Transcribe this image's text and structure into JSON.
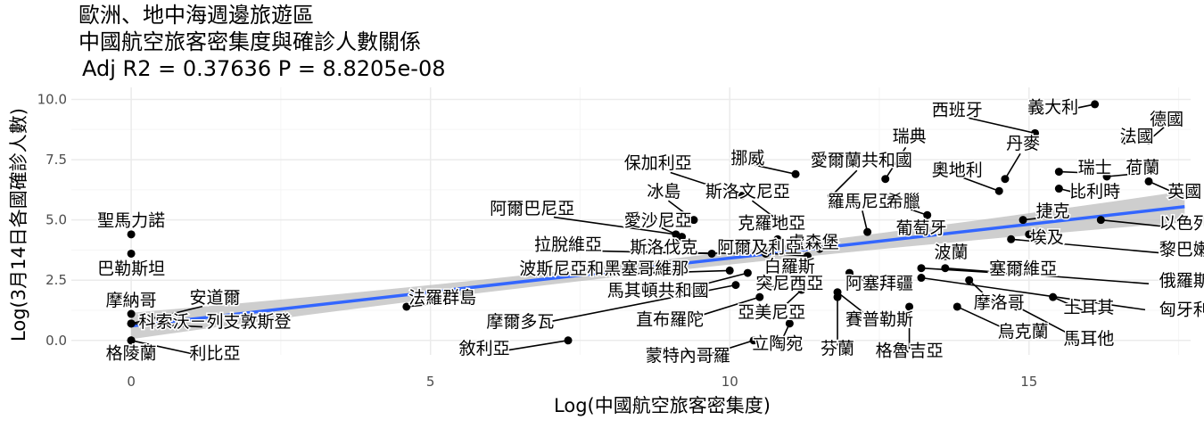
{
  "title": "歐洲、地中海週邊旅遊區",
  "subtitle": "中國航空旅客密集度與確診人數關係",
  "stats_line": "Adj R2 =  0.37636  P = 8.8205e-08",
  "colors": {
    "background": "#ffffff",
    "grid_major": "#ebebeb",
    "grid_minor": "#f5f5f5",
    "point": "#000000",
    "regression_line": "#3366ff",
    "confidence_band": "#bdbdbd",
    "tick_text": "#4d4d4d"
  },
  "chart_data": {
    "type": "scatter",
    "title": "歐洲、地中海週邊旅遊區",
    "subtitle": "中國航空旅客密集度與確診人數關係",
    "annotation": "Adj R2 =  0.37636  P = 8.8205e-08",
    "xlabel": "Log(中國航空旅客密集度)",
    "ylabel": "Log(3月14日各國確診人數)",
    "xlim": [
      -1,
      17.7
    ],
    "ylim": [
      -0.6,
      10.5
    ],
    "xticks": [
      0,
      5,
      10,
      15
    ],
    "xtick_labels": [
      "0",
      "5",
      "10",
      "15"
    ],
    "yticks": [
      0,
      2.5,
      5,
      7.5,
      10
    ],
    "ytick_labels": [
      "0.0",
      "2.5",
      "5.0",
      "7.5",
      "10.0"
    ],
    "grid": true,
    "legend": "none",
    "regression": {
      "x_start": 0,
      "x_end": 17.6,
      "y_start": 0.6,
      "y_end": 5.55,
      "band_half_width_start": 0.55,
      "band_half_width_mid": 0.25,
      "band_half_width_end": 0.65
    },
    "points": [
      {
        "label": "義大利",
        "x": 16.1,
        "y": 9.8,
        "lx": 15.4,
        "ly": 9.7
      },
      {
        "label": "西班牙",
        "x": 15.1,
        "y": 8.6,
        "lx": 13.8,
        "ly": 9.6
      },
      {
        "label": "德國",
        "x": 17.0,
        "y": 8.3,
        "lx": 17.3,
        "ly": 9.2
      },
      {
        "label": "法國",
        "x": 16.6,
        "y": 8.3,
        "lx": 16.8,
        "ly": 8.5
      },
      {
        "label": "丹麥",
        "x": 14.6,
        "y": 6.7,
        "lx": 14.9,
        "ly": 8.2
      },
      {
        "label": "瑞典",
        "x": 12.6,
        "y": 6.7,
        "lx": 13.0,
        "ly": 8.5
      },
      {
        "label": "奧地利",
        "x": 14.5,
        "y": 6.2,
        "lx": 13.8,
        "ly": 7.1
      },
      {
        "label": "瑞士",
        "x": 15.5,
        "y": 7.0,
        "lx": 16.1,
        "ly": 7.2
      },
      {
        "label": "荷蘭",
        "x": 16.3,
        "y": 6.8,
        "lx": 16.9,
        "ly": 7.2
      },
      {
        "label": "比利時",
        "x": 15.5,
        "y": 6.3,
        "lx": 16.1,
        "ly": 6.2
      },
      {
        "label": "英國",
        "x": 17.0,
        "y": 6.6,
        "lx": 17.6,
        "ly": 6.2
      },
      {
        "label": "挪威",
        "x": 11.1,
        "y": 6.9,
        "lx": 10.3,
        "ly": 7.6
      },
      {
        "label": "愛爾蘭共和國",
        "x": 11.7,
        "y": 6.0,
        "lx": 12.2,
        "ly": 7.5
      },
      {
        "label": "保加利亞",
        "x": 10.2,
        "y": 6.0,
        "lx": 8.8,
        "ly": 7.4
      },
      {
        "label": "冰島",
        "x": 9.4,
        "y": 5.0,
        "lx": 8.9,
        "ly": 6.2
      },
      {
        "label": "斯洛文尼亞",
        "x": 10.8,
        "y": 5.0,
        "lx": 10.3,
        "ly": 6.2
      },
      {
        "label": "羅馬尼亞",
        "x": 12.3,
        "y": 4.5,
        "lx": 12.2,
        "ly": 5.8
      },
      {
        "label": "希臘",
        "x": 13.3,
        "y": 5.2,
        "lx": 12.9,
        "ly": 5.8
      },
      {
        "label": "捷克",
        "x": 14.9,
        "y": 5.0,
        "lx": 15.4,
        "ly": 5.4
      },
      {
        "label": "以色列",
        "x": 16.2,
        "y": 5.0,
        "lx": 17.6,
        "ly": 4.9
      },
      {
        "label": "阿爾巴尼亞",
        "x": 9.1,
        "y": 4.4,
        "lx": 6.7,
        "ly": 5.5
      },
      {
        "label": "愛沙尼亞",
        "x": 9.2,
        "y": 4.3,
        "lx": 8.8,
        "ly": 5.0
      },
      {
        "label": "克羅地亞",
        "x": 10.8,
        "y": 4.2,
        "lx": 10.7,
        "ly": 4.9
      },
      {
        "label": "葡萄牙",
        "x": 13.5,
        "y": 4.7,
        "lx": 13.2,
        "ly": 4.7
      },
      {
        "label": "埃及",
        "x": 15.0,
        "y": 4.4,
        "lx": 15.3,
        "ly": 4.3
      },
      {
        "label": "黎巴嫩",
        "x": 14.7,
        "y": 4.2,
        "lx": 17.6,
        "ly": 3.8
      },
      {
        "label": "盧森堡",
        "x": 11.5,
        "y": 3.8,
        "lx": 11.4,
        "ly": 4.1
      },
      {
        "label": "拉脫維亞",
        "x": 9.7,
        "y": 3.6,
        "lx": 7.3,
        "ly": 4.0
      },
      {
        "label": "斯洛伐克",
        "x": 10.6,
        "y": 3.6,
        "lx": 8.9,
        "ly": 3.9
      },
      {
        "label": "阿爾及利亞",
        "x": 11.3,
        "y": 3.5,
        "lx": 10.5,
        "ly": 3.9
      },
      {
        "label": "波蘭",
        "x": 13.6,
        "y": 3.5,
        "lx": 13.7,
        "ly": 3.7
      },
      {
        "label": "塞爾維亞",
        "x": 13.2,
        "y": 3.0,
        "lx": 14.9,
        "ly": 3.0
      },
      {
        "label": "俄羅斯",
        "x": 13.6,
        "y": 3.0,
        "lx": 17.6,
        "ly": 2.5
      },
      {
        "label": "匈牙利",
        "x": 13.2,
        "y": 2.6,
        "lx": 17.6,
        "ly": 1.3
      },
      {
        "label": "波斯尼亞和黑塞哥維那",
        "x": 10.0,
        "y": 2.9,
        "lx": 7.9,
        "ly": 3.0
      },
      {
        "label": "白羅斯",
        "x": 11.2,
        "y": 3.0,
        "lx": 11.0,
        "ly": 3.1
      },
      {
        "label": "法羅群島",
        "x": 4.6,
        "y": 1.4,
        "lx": 5.2,
        "ly": 1.8
      },
      {
        "label": "馬其頓共和國",
        "x": 10.3,
        "y": 2.8,
        "lx": 8.8,
        "ly": 2.1
      },
      {
        "label": "突尼西亞",
        "x": 10.6,
        "y": 2.3,
        "lx": 11.0,
        "ly": 2.4
      },
      {
        "label": "阿塞拜疆",
        "x": 12.0,
        "y": 2.8,
        "lx": 12.5,
        "ly": 2.4
      },
      {
        "label": "摩洛哥",
        "x": 14.0,
        "y": 2.5,
        "lx": 14.5,
        "ly": 1.6
      },
      {
        "label": "土耳其",
        "x": 15.4,
        "y": 1.8,
        "lx": 16.0,
        "ly": 1.4
      },
      {
        "label": "亞美尼亞",
        "x": 11.2,
        "y": 2.1,
        "lx": 10.7,
        "ly": 1.2
      },
      {
        "label": "摩爾多瓦",
        "x": 10.1,
        "y": 2.3,
        "lx": 6.5,
        "ly": 0.8
      },
      {
        "label": "直布羅陀",
        "x": 10.5,
        "y": 1.8,
        "lx": 9.0,
        "ly": 0.9
      },
      {
        "label": "賽普勒斯",
        "x": 11.8,
        "y": 2.0,
        "lx": 12.5,
        "ly": 0.9
      },
      {
        "label": "烏克蘭",
        "x": 13.8,
        "y": 1.4,
        "lx": 14.9,
        "ly": 0.4
      },
      {
        "label": "馬耳他",
        "x": 14.8,
        "y": 1.4,
        "lx": 16.0,
        "ly": 0.1
      },
      {
        "label": "立陶宛",
        "x": 11.0,
        "y": 0.7,
        "lx": 10.8,
        "ly": -0.1
      },
      {
        "label": "芬蘭",
        "x": 11.8,
        "y": 1.8,
        "lx": 11.8,
        "ly": -0.3
      },
      {
        "label": "格魯吉亞",
        "x": 13.0,
        "y": 1.4,
        "lx": 13.0,
        "ly": -0.4
      },
      {
        "label": "蒙特內哥羅",
        "x": 10.4,
        "y": 0.0,
        "lx": 9.3,
        "ly": -0.6
      },
      {
        "label": "敘利亞",
        "x": 7.3,
        "y": 0.0,
        "lx": 5.9,
        "ly": -0.3
      },
      {
        "label": "聖馬力諾",
        "x": 0.0,
        "y": 4.4,
        "lx": 0.0,
        "ly": 5.0
      },
      {
        "label": "巴勒斯坦",
        "x": 0.0,
        "y": 3.6,
        "lx": 0.0,
        "ly": 3.0
      },
      {
        "label": "摩納哥",
        "x": 0.0,
        "y": 1.1,
        "lx": 0.0,
        "ly": 1.7
      },
      {
        "label": "安道爾",
        "x": 0.0,
        "y": 0.7,
        "lx": 1.4,
        "ly": 1.8
      },
      {
        "label": "科索沃－列支敦斯登",
        "x": 0.0,
        "y": 0.7,
        "lx": 1.4,
        "ly": 0.8
      },
      {
        "label": "格陵蘭",
        "x": 0.0,
        "y": 0.0,
        "lx": 0.0,
        "ly": -0.5
      },
      {
        "label": "利比亞",
        "x": 0.0,
        "y": 0.0,
        "lx": 1.4,
        "ly": -0.5
      }
    ]
  }
}
